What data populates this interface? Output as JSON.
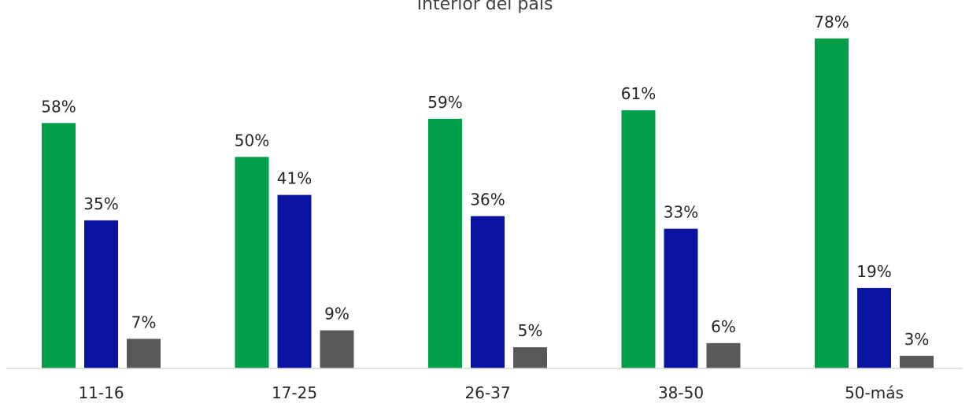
{
  "chart_data": {
    "type": "bar",
    "title": "Interior del país",
    "categories": [
      "11-16",
      "17-25",
      "26-37",
      "38-50",
      "50-más"
    ],
    "series": [
      {
        "values": [
          58,
          50,
          59,
          61,
          78
        ],
        "color": "#00A04A"
      },
      {
        "values": [
          35,
          41,
          36,
          33,
          19
        ],
        "color": "#0A14A0"
      },
      {
        "values": [
          7,
          9,
          5,
          6,
          3
        ],
        "color": "#595959"
      }
    ],
    "value_suffix": "%",
    "ylim": [
      0,
      80
    ],
    "grid": false,
    "legend": "none",
    "axis_color": "#D9D9D9"
  }
}
